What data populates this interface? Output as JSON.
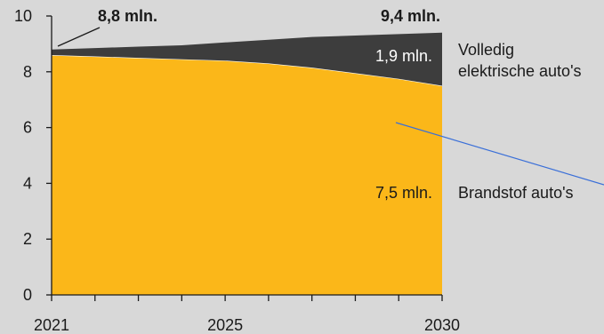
{
  "chart_data": {
    "type": "area",
    "title": "",
    "xlabel": "",
    "ylabel": "",
    "x": [
      2021,
      2022,
      2023,
      2024,
      2025,
      2026,
      2027,
      2028,
      2029,
      2030
    ],
    "x_tick_labels": [
      "2021",
      "2025",
      "2030"
    ],
    "y_ticks": [
      "0",
      "2",
      "4",
      "6",
      "8",
      "10"
    ],
    "xlim": [
      2021,
      2030
    ],
    "ylim": [
      0,
      10
    ],
    "grid": false,
    "stacked": true,
    "series": [
      {
        "name": "Brandstof auto's",
        "color": "#fbb719",
        "values": [
          8.6,
          8.55,
          8.5,
          8.45,
          8.4,
          8.3,
          8.15,
          7.95,
          7.75,
          7.5
        ]
      },
      {
        "name": "Volledig elektrische auto's",
        "color": "#3d3d3d",
        "values": [
          0.2,
          0.3,
          0.4,
          0.5,
          0.65,
          0.85,
          1.1,
          1.35,
          1.6,
          1.9
        ]
      }
    ],
    "annotations": {
      "start_total": "8,8 mln.",
      "end_total": "9,4 mln.",
      "end_electric": "1,9 mln.",
      "end_fuel": "7,5 mln."
    },
    "legend": {
      "electric_line1": "Volledig",
      "electric_line2": "elektrische auto's",
      "fuel": "Brandstof auto's"
    }
  }
}
